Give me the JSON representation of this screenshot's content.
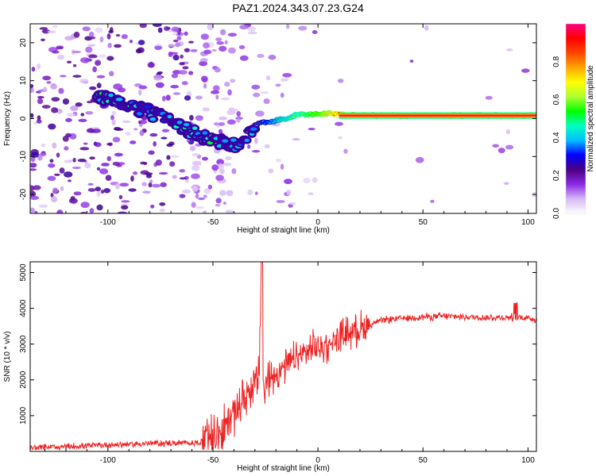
{
  "title": "PAZ1.2024.343.07.23.G24",
  "chart_data": [
    {
      "type": "heatmap",
      "xlabel": "Height of straight line (km)",
      "ylabel": "Frequency (Hz)",
      "xlim": [
        -137,
        104
      ],
      "ylim": [
        -25,
        25
      ],
      "xticks": [
        -100,
        -50,
        0,
        50,
        100
      ],
      "yticks": [
        -20,
        -10,
        0,
        10,
        20
      ],
      "colorbar": {
        "label": "Normalized spectral amplitude",
        "range": [
          0,
          1
        ],
        "ticks": [
          0.0,
          0.2,
          0.4,
          0.6,
          0.8
        ],
        "colors": [
          "#ffffff",
          "#d6b8f5",
          "#8a2be2",
          "#4b0082",
          "#0000ff",
          "#00bfff",
          "#00ffc0",
          "#00ff00",
          "#adff2f",
          "#ffff00",
          "#ffa500",
          "#ff4500",
          "#ff0000",
          "#ff0080"
        ]
      },
      "ridge": {
        "x": [
          -105,
          -100,
          -95,
          -90,
          -85,
          -80,
          -75,
          -70,
          -65,
          -60,
          -55,
          -50,
          -45,
          -40,
          -35,
          -30,
          -25,
          -20,
          -15,
          -10,
          -5,
          0,
          5,
          10,
          20,
          30,
          50,
          75,
          104
        ],
        "frequency": [
          6,
          5.5,
          4.5,
          3.5,
          2.5,
          1.5,
          0.5,
          -1,
          -2.5,
          -3.5,
          -4.5,
          -5.5,
          -6.5,
          -7,
          -6,
          -1.5,
          -1,
          -0.5,
          0,
          1,
          1.2,
          1.2,
          1.4,
          1.2,
          0.8,
          0.8,
          0.8,
          0.8,
          0.8
        ],
        "amplitude": [
          0.35,
          0.4,
          0.35,
          0.35,
          0.3,
          0.3,
          0.25,
          0.3,
          0.35,
          0.35,
          0.35,
          0.4,
          0.35,
          0.3,
          0.3,
          0.35,
          0.45,
          0.5,
          0.55,
          0.6,
          0.65,
          0.7,
          0.75,
          0.85,
          0.95,
          0.95,
          0.95,
          0.95,
          0.95
        ]
      }
    },
    {
      "type": "line",
      "xlabel": "Height of straight line (km)",
      "ylabel": "SNR (10 * v/v)",
      "xlim": [
        -137,
        104
      ],
      "ylim": [
        0,
        5300
      ],
      "xticks": [
        -100,
        -50,
        0,
        50,
        100
      ],
      "yticks": [
        1000,
        2000,
        3000,
        4000,
        5000
      ],
      "color": "#ee2222",
      "x": [
        -137,
        -130,
        -120,
        -110,
        -100,
        -90,
        -80,
        -70,
        -60,
        -55,
        -50,
        -45,
        -40,
        -37,
        -35,
        -32,
        -30,
        -28,
        -27,
        -26,
        -25,
        -22,
        -20,
        -15,
        -10,
        -5,
        0,
        5,
        10,
        15,
        20,
        25,
        30,
        35,
        40,
        45,
        50,
        55,
        60,
        70,
        80,
        90,
        95,
        100,
        104
      ],
      "y": [
        100,
        120,
        130,
        160,
        180,
        200,
        220,
        230,
        230,
        260,
        380,
        650,
        1100,
        1300,
        1500,
        1750,
        1900,
        2000,
        5300,
        1600,
        1800,
        2100,
        2200,
        2400,
        2600,
        2800,
        2900,
        3000,
        3200,
        3350,
        3450,
        3550,
        3650,
        3700,
        3720,
        3740,
        3760,
        3770,
        3780,
        3760,
        3740,
        3740,
        3760,
        3720,
        3700
      ]
    }
  ]
}
